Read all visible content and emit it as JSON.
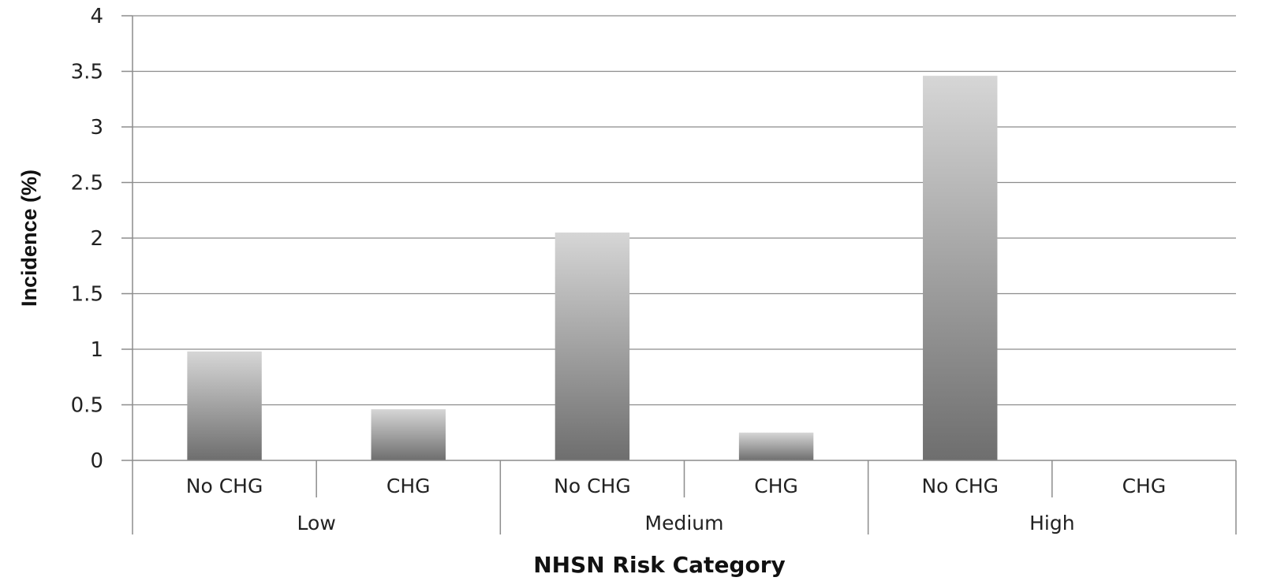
{
  "chart_data": {
    "type": "bar",
    "xlabel": "NHSN Risk Category",
    "ylabel": "Incidence (%)",
    "ylim": [
      0,
      4
    ],
    "yticks": [
      "0",
      "0.5",
      "1",
      "1.5",
      "2",
      "2.5",
      "3",
      "3.5",
      "4"
    ],
    "grid": true,
    "groups": [
      {
        "label": "Low",
        "categories": [
          "No CHG",
          "CHG"
        ],
        "values": [
          0.98,
          0.46
        ]
      },
      {
        "label": "Medium",
        "categories": [
          "No CHG",
          "CHG"
        ],
        "values": [
          2.05,
          0.25
        ]
      },
      {
        "label": "High",
        "categories": [
          "No CHG",
          "CHG"
        ],
        "values": [
          3.46,
          0
        ]
      }
    ],
    "colors": {
      "bar_top": "#d6d6d6",
      "bar_bottom": "#6e6e6e",
      "grid": "#8c8c8c",
      "axis": "#8c8c8c"
    }
  }
}
